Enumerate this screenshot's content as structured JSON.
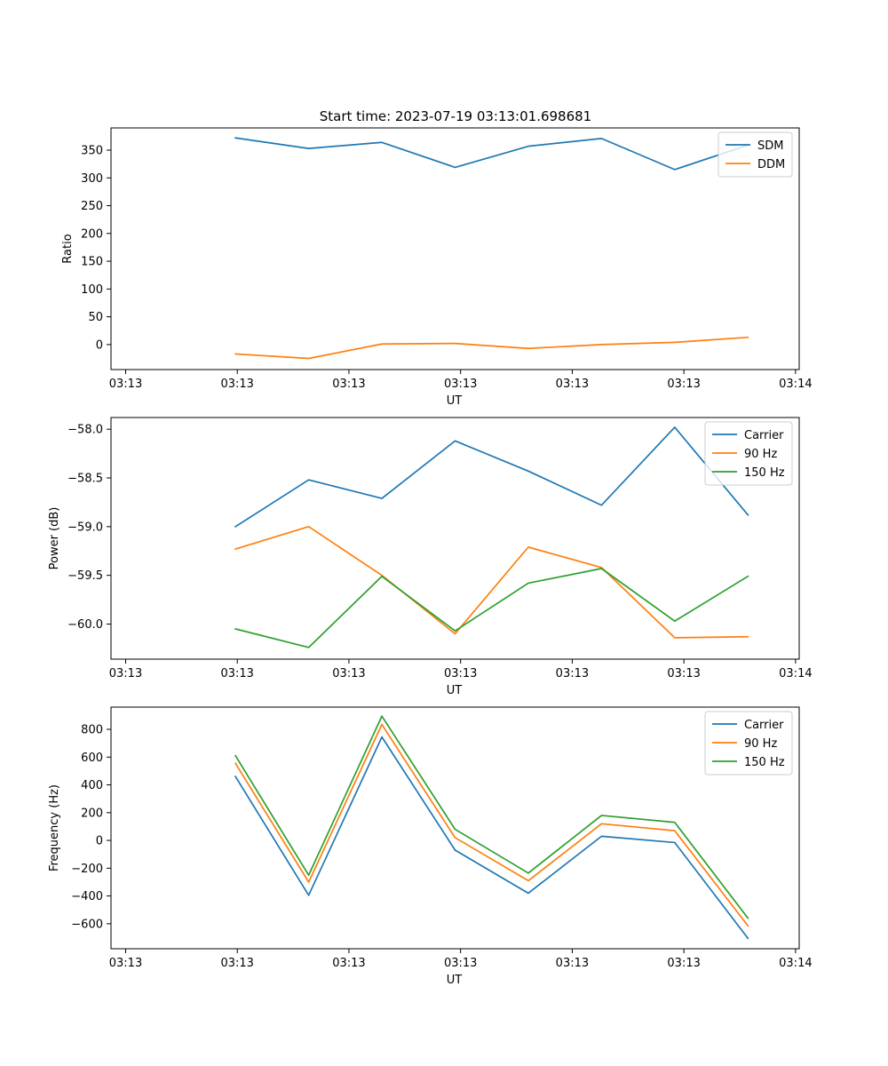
{
  "figure": {
    "title": "Start time: 2023-07-19 03:13:01.698681"
  },
  "colors": {
    "c0": "#1f77b4",
    "c1": "#ff7f0e",
    "c2": "#2ca02c"
  },
  "chart_data": [
    {
      "type": "line",
      "title": "Start time: 2023-07-19 03:13:01.698681",
      "xlabel": "UT",
      "ylabel": "Ratio",
      "x": [
        1,
        2,
        3,
        4,
        5,
        6,
        7,
        8
      ],
      "xlim": [
        -0.7,
        8.7
      ],
      "xticks": [
        -0.5,
        1.025,
        2.55,
        4.075,
        5.6,
        7.125,
        8.65
      ],
      "xticklabels": [
        "03:13",
        "03:13",
        "03:13",
        "03:13",
        "03:13",
        "03:13",
        "03:14"
      ],
      "ylim": [
        -45,
        390
      ],
      "yticks": [
        0,
        50,
        100,
        150,
        200,
        250,
        300,
        350
      ],
      "yticklabels": [
        "0",
        "50",
        "100",
        "150",
        "200",
        "250",
        "300",
        "350"
      ],
      "legend": "top-right",
      "series": [
        {
          "name": "SDM",
          "color": "#1f77b4",
          "values": [
            372,
            353,
            364,
            319,
            357,
            371,
            315,
            359
          ]
        },
        {
          "name": "DDM",
          "color": "#ff7f0e",
          "values": [
            -17,
            -25,
            1,
            2,
            -7,
            0,
            4,
            13
          ]
        }
      ]
    },
    {
      "type": "line",
      "title": "",
      "xlabel": "UT",
      "ylabel": "Power (dB)",
      "x": [
        1,
        2,
        3,
        4,
        5,
        6,
        7,
        8
      ],
      "xlim": [
        -0.7,
        8.7
      ],
      "xticks": [
        -0.5,
        1.025,
        2.55,
        4.075,
        5.6,
        7.125,
        8.65
      ],
      "xticklabels": [
        "03:13",
        "03:13",
        "03:13",
        "03:13",
        "03:13",
        "03:13",
        "03:14"
      ],
      "ylim": [
        -60.36,
        -57.88
      ],
      "yticks": [
        -60.0,
        -59.5,
        -59.0,
        -58.5,
        -58.0
      ],
      "yticklabels": [
        "−60.0",
        "−59.5",
        "−59.0",
        "−58.5",
        "−58.0"
      ],
      "legend": "top-right",
      "series": [
        {
          "name": "Carrier",
          "color": "#1f77b4",
          "values": [
            -59.0,
            -58.52,
            -58.71,
            -58.12,
            -58.43,
            -58.78,
            -57.98,
            -58.88
          ]
        },
        {
          "name": "90 Hz",
          "color": "#ff7f0e",
          "values": [
            -59.23,
            -59.0,
            -59.5,
            -60.1,
            -59.21,
            -59.42,
            -60.14,
            -60.13
          ]
        },
        {
          "name": "150 Hz",
          "color": "#2ca02c",
          "values": [
            -60.05,
            -60.24,
            -59.51,
            -60.07,
            -59.58,
            -59.43,
            -59.97,
            -59.51
          ]
        }
      ]
    },
    {
      "type": "line",
      "title": "",
      "xlabel": "UT",
      "ylabel": "Frequency (Hz)",
      "x": [
        1,
        2,
        3,
        4,
        5,
        6,
        7,
        8
      ],
      "xlim": [
        -0.7,
        8.7
      ],
      "xticks": [
        -0.5,
        1.025,
        2.55,
        4.075,
        5.6,
        7.125,
        8.65
      ],
      "xticklabels": [
        "03:13",
        "03:13",
        "03:13",
        "03:13",
        "03:13",
        "03:13",
        "03:14"
      ],
      "ylim": [
        -780,
        960
      ],
      "yticks": [
        -600,
        -400,
        -200,
        0,
        200,
        400,
        600,
        800
      ],
      "yticklabels": [
        "−600",
        "−400",
        "−200",
        "0",
        "200",
        "400",
        "600",
        "800"
      ],
      "legend": "top-right",
      "series": [
        {
          "name": "Carrier",
          "color": "#1f77b4",
          "values": [
            460,
            -395,
            745,
            -70,
            -380,
            30,
            -15,
            -705
          ]
        },
        {
          "name": "90 Hz",
          "color": "#ff7f0e",
          "values": [
            555,
            -300,
            835,
            20,
            -290,
            120,
            70,
            -615
          ]
        },
        {
          "name": "150 Hz",
          "color": "#2ca02c",
          "values": [
            610,
            -250,
            895,
            80,
            -235,
            180,
            130,
            -560
          ]
        }
      ]
    }
  ]
}
